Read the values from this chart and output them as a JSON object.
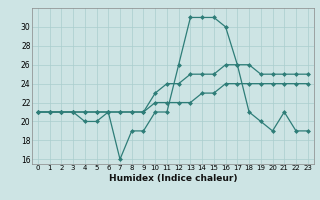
{
  "xlabel": "Humidex (Indice chaleur)",
  "background_color": "#cde4e4",
  "grid_color": "#aacece",
  "line_color": "#2e7d78",
  "x_values": [
    0,
    1,
    2,
    3,
    4,
    5,
    6,
    7,
    8,
    9,
    10,
    11,
    12,
    13,
    14,
    15,
    16,
    17,
    18,
    19,
    20,
    21,
    22,
    23
  ],
  "series1": [
    21,
    21,
    21,
    21,
    20,
    20,
    21,
    16,
    19,
    19,
    21,
    21,
    26,
    31,
    31,
    31,
    30,
    26,
    21,
    20,
    19,
    21,
    19,
    19
  ],
  "series2": [
    21,
    21,
    21,
    21,
    21,
    21,
    21,
    21,
    21,
    21,
    23,
    24,
    24,
    25,
    25,
    25,
    26,
    26,
    26,
    25,
    25,
    25,
    25,
    25
  ],
  "series3": [
    21,
    21,
    21,
    21,
    21,
    21,
    21,
    21,
    21,
    21,
    22,
    22,
    22,
    22,
    23,
    23,
    24,
    24,
    24,
    24,
    24,
    24,
    24,
    24
  ],
  "ylim": [
    15.5,
    32
  ],
  "xlim": [
    -0.5,
    23.5
  ],
  "yticks": [
    16,
    18,
    20,
    22,
    24,
    26,
    28,
    30
  ],
  "xticks": [
    0,
    1,
    2,
    3,
    4,
    5,
    6,
    7,
    8,
    9,
    10,
    11,
    12,
    13,
    14,
    15,
    16,
    17,
    18,
    19,
    20,
    21,
    22,
    23
  ]
}
